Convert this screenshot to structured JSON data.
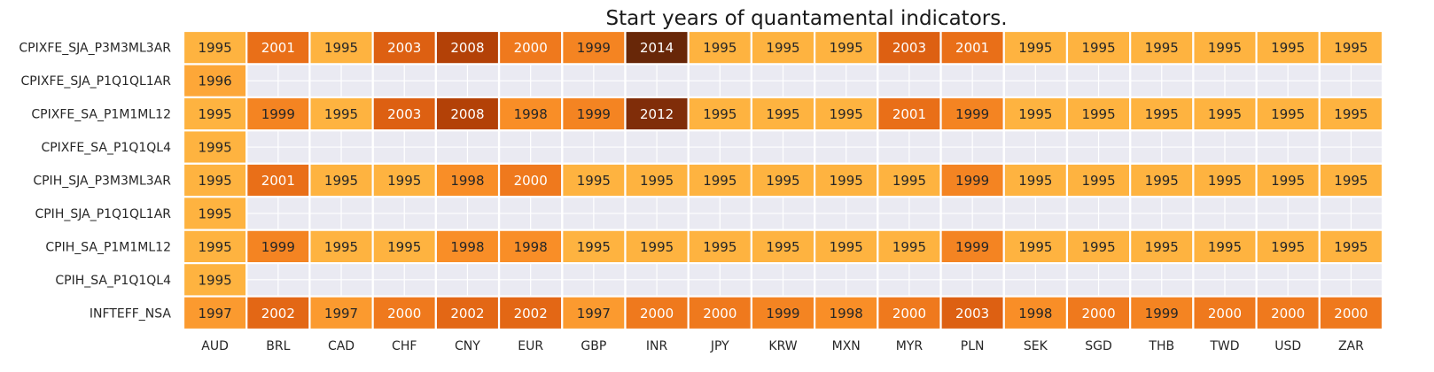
{
  "chart_data": {
    "type": "heatmap",
    "title": "Start years of quantamental indicators.",
    "xlabel": "",
    "ylabel": "",
    "x_categories": [
      "AUD",
      "BRL",
      "CAD",
      "CHF",
      "CNY",
      "EUR",
      "GBP",
      "INR",
      "JPY",
      "KRW",
      "MXN",
      "MYR",
      "PLN",
      "SEK",
      "SGD",
      "THB",
      "TWD",
      "USD",
      "ZAR"
    ],
    "y_categories": [
      "CPIXFE_SJA_P3M3ML3AR",
      "CPIXFE_SJA_P1Q1QL1AR",
      "CPIXFE_SA_P1M1ML12",
      "CPIXFE_SA_P1Q1QL4",
      "CPIH_SJA_P3M3ML3AR",
      "CPIH_SJA_P1Q1QL1AR",
      "CPIH_SA_P1M1ML12",
      "CPIH_SA_P1Q1QL4",
      "INFTEFF_NSA"
    ],
    "values": [
      [
        1995,
        2001,
        1995,
        2003,
        2008,
        2000,
        1999,
        2014,
        1995,
        1995,
        1995,
        2003,
        2001,
        1995,
        1995,
        1995,
        1995,
        1995,
        1995
      ],
      [
        1996,
        null,
        null,
        null,
        null,
        null,
        null,
        null,
        null,
        null,
        null,
        null,
        null,
        null,
        null,
        null,
        null,
        null,
        null
      ],
      [
        1995,
        1999,
        1995,
        2003,
        2008,
        1998,
        1999,
        2012,
        1995,
        1995,
        1995,
        2001,
        1999,
        1995,
        1995,
        1995,
        1995,
        1995,
        1995
      ],
      [
        1995,
        null,
        null,
        null,
        null,
        null,
        null,
        null,
        null,
        null,
        null,
        null,
        null,
        null,
        null,
        null,
        null,
        null,
        null
      ],
      [
        1995,
        2001,
        1995,
        1995,
        1998,
        2000,
        1995,
        1995,
        1995,
        1995,
        1995,
        1995,
        1999,
        1995,
        1995,
        1995,
        1995,
        1995,
        1995
      ],
      [
        1995,
        null,
        null,
        null,
        null,
        null,
        null,
        null,
        null,
        null,
        null,
        null,
        null,
        null,
        null,
        null,
        null,
        null,
        null
      ],
      [
        1995,
        1999,
        1995,
        1995,
        1998,
        1998,
        1995,
        1995,
        1995,
        1995,
        1995,
        1995,
        1999,
        1995,
        1995,
        1995,
        1995,
        1995,
        1995
      ],
      [
        1995,
        null,
        null,
        null,
        null,
        null,
        null,
        null,
        null,
        null,
        null,
        null,
        null,
        null,
        null,
        null,
        null,
        null,
        null
      ],
      [
        1997,
        2002,
        1997,
        2000,
        2002,
        2002,
        1997,
        2000,
        2000,
        1999,
        1998,
        2000,
        2003,
        1998,
        2000,
        1999,
        2000,
        2000,
        2000
      ]
    ],
    "value_range": [
      1995,
      2014
    ],
    "colormap": "YlOrBr",
    "colors": {
      "missing_background": "#eaeaf2",
      "missing_grid": "#ffffff",
      "cell_border": "#ffffff",
      "text_dark": "#262626",
      "text_light": "#ffffff",
      "title": "#1a1a1a",
      "tick": "#262626"
    }
  }
}
